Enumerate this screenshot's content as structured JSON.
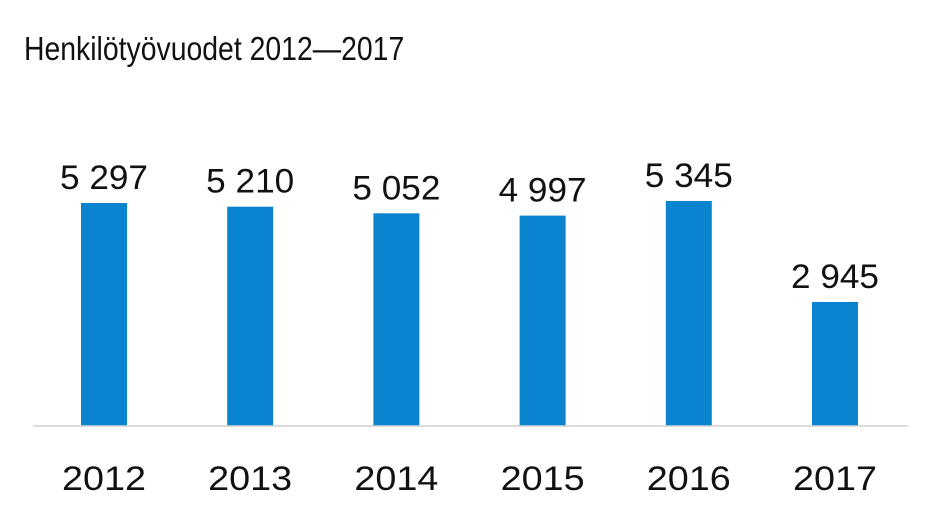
{
  "chart_data": {
    "type": "bar",
    "title": "Henkilötyövuodet 2012—2017",
    "categories": [
      "2012",
      "2013",
      "2014",
      "2015",
      "2016",
      "2017"
    ],
    "values": [
      5297,
      5210,
      5052,
      4997,
      5345,
      2945
    ],
    "value_labels": [
      "5 297",
      "5 210",
      "5 052",
      "4 997",
      "5 345",
      "2 945"
    ],
    "xlabel": "",
    "ylabel": "",
    "ylim": [
      0,
      5345
    ],
    "grid": false,
    "legend": "none",
    "bar_color": "#0A84CF",
    "axis_color": "#D0D0D0"
  }
}
